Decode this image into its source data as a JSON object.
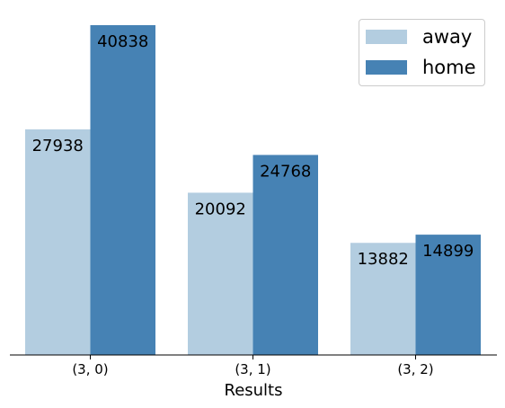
{
  "chart_data": {
    "type": "bar",
    "categories": [
      "(3, 0)",
      "(3, 1)",
      "(3, 2)"
    ],
    "series": [
      {
        "name": "away",
        "values": [
          27938,
          20092,
          13882
        ],
        "color": "#b3cde0"
      },
      {
        "name": "home",
        "values": [
          40838,
          24768,
          14899
        ],
        "color": "#4682b4"
      }
    ],
    "title": "",
    "xlabel": "Results",
    "ylabel": "",
    "ylim": [
      0,
      42900
    ],
    "grid": false,
    "legend_position": "top-right",
    "data_labels": true
  }
}
